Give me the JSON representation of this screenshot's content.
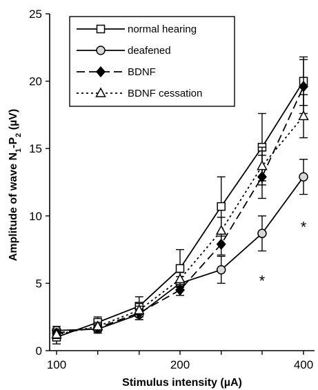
{
  "chart_data": {
    "type": "line",
    "xlabel": "Stimulus intensity (µA)",
    "ylabel": "Amplitude of wave N1-P2 (µV)",
    "ylabel_parts": [
      "Amplitude of wave N",
      "1",
      "-P",
      "2",
      " (µV)"
    ],
    "xlim": [
      100,
      420
    ],
    "ylim": [
      0,
      25
    ],
    "x_log_scale": true,
    "x_ticks": [
      100,
      200,
      400
    ],
    "y_ticks": [
      0,
      5,
      10,
      15,
      20,
      25
    ],
    "x": [
      100,
      126,
      159,
      200,
      252,
      317,
      400
    ],
    "legend_position": "top-left",
    "grid": false,
    "series": [
      {
        "name": "normal hearing",
        "marker": "square",
        "line_style": "solid",
        "values": [
          1.0,
          2.1,
          3.3,
          6.1,
          10.7,
          15.1,
          20.0
        ],
        "error": [
          0.5,
          0.4,
          0.7,
          1.4,
          2.2,
          2.5,
          1.8
        ]
      },
      {
        "name": "deafened",
        "marker": "circle",
        "line_style": "solid",
        "values": [
          1.5,
          1.6,
          2.7,
          5.0,
          6.0,
          8.7,
          12.9
        ],
        "error": [
          0.3,
          0.3,
          0.4,
          0.5,
          1.0,
          1.3,
          1.3
        ]
      },
      {
        "name": "BDNF",
        "marker": "diamond",
        "line_style": "dashed",
        "values": [
          1.3,
          1.7,
          2.8,
          4.5,
          7.9,
          12.9,
          19.6
        ],
        "error": [
          0.3,
          0.3,
          0.5,
          0.4,
          0.8,
          1.6,
          2.0
        ]
      },
      {
        "name": "BDNF cessation",
        "marker": "triangle",
        "line_style": "dotted",
        "values": [
          1.2,
          1.8,
          3.0,
          5.3,
          8.9,
          13.7,
          17.4
        ],
        "error": [
          0.3,
          0.3,
          0.5,
          0.5,
          1.0,
          1.4,
          1.6
        ]
      }
    ],
    "annotations": [
      {
        "text": "*",
        "x": 317,
        "y": 5.2
      },
      {
        "text": "*",
        "x": 400,
        "y": 9.2
      }
    ]
  }
}
